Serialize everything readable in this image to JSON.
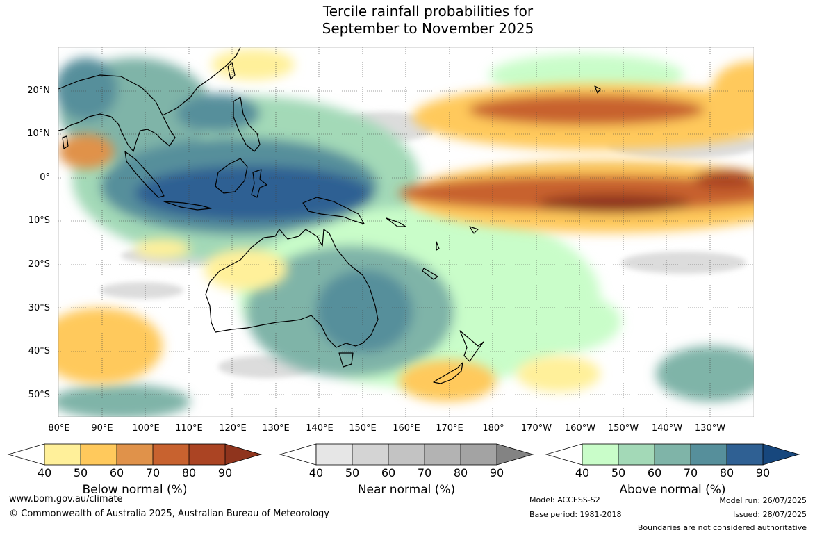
{
  "title_line1": "Tercile rainfall probabilities for",
  "title_line2": "September to November 2025",
  "lat_labels": [
    "20°N",
    "10°N",
    "0°",
    "10°S",
    "20°S",
    "30°S",
    "40°S",
    "50°S"
  ],
  "lon_labels": [
    "80°E",
    "90°E",
    "100°E",
    "110°E",
    "120°E",
    "130°E",
    "140°E",
    "150°E",
    "160°E",
    "170°E",
    "180°",
    "170°W",
    "160°W",
    "150°W",
    "140°W",
    "130°W"
  ],
  "colorbars": [
    {
      "title": "Below normal (%)",
      "ticks": [
        "40",
        "50",
        "60",
        "70",
        "80",
        "90"
      ],
      "colors": [
        "#fff09a",
        "#ffc95c",
        "#e0924a",
        "#c8622f",
        "#ab4423",
        "#8f341d"
      ]
    },
    {
      "title": "Near normal (%)",
      "ticks": [
        "40",
        "50",
        "60",
        "70",
        "80",
        "90"
      ],
      "colors": [
        "#e6e6e6",
        "#d4d4d4",
        "#c3c3c3",
        "#b3b3b3",
        "#a3a3a3",
        "#838383"
      ]
    },
    {
      "title": "Above normal (%)",
      "ticks": [
        "40",
        "50",
        "60",
        "70",
        "80",
        "90"
      ],
      "colors": [
        "#c9fdc9",
        "#a3d9b7",
        "#7fb4a8",
        "#568f9b",
        "#2f6093",
        "#17477d"
      ]
    }
  ],
  "footer": {
    "url": "www.bom.gov.au/climate",
    "copyright": "© Commonwealth of Australia 2025, Australian Bureau of Meteorology",
    "model": "Model: ACCESS-S2",
    "base_period": "Base period: 1981-2018",
    "model_run": "Model run: 26/07/2025",
    "issued": "Issued: 28/07/2025",
    "boundaries": "Boundaries are not considered authoritative"
  }
}
